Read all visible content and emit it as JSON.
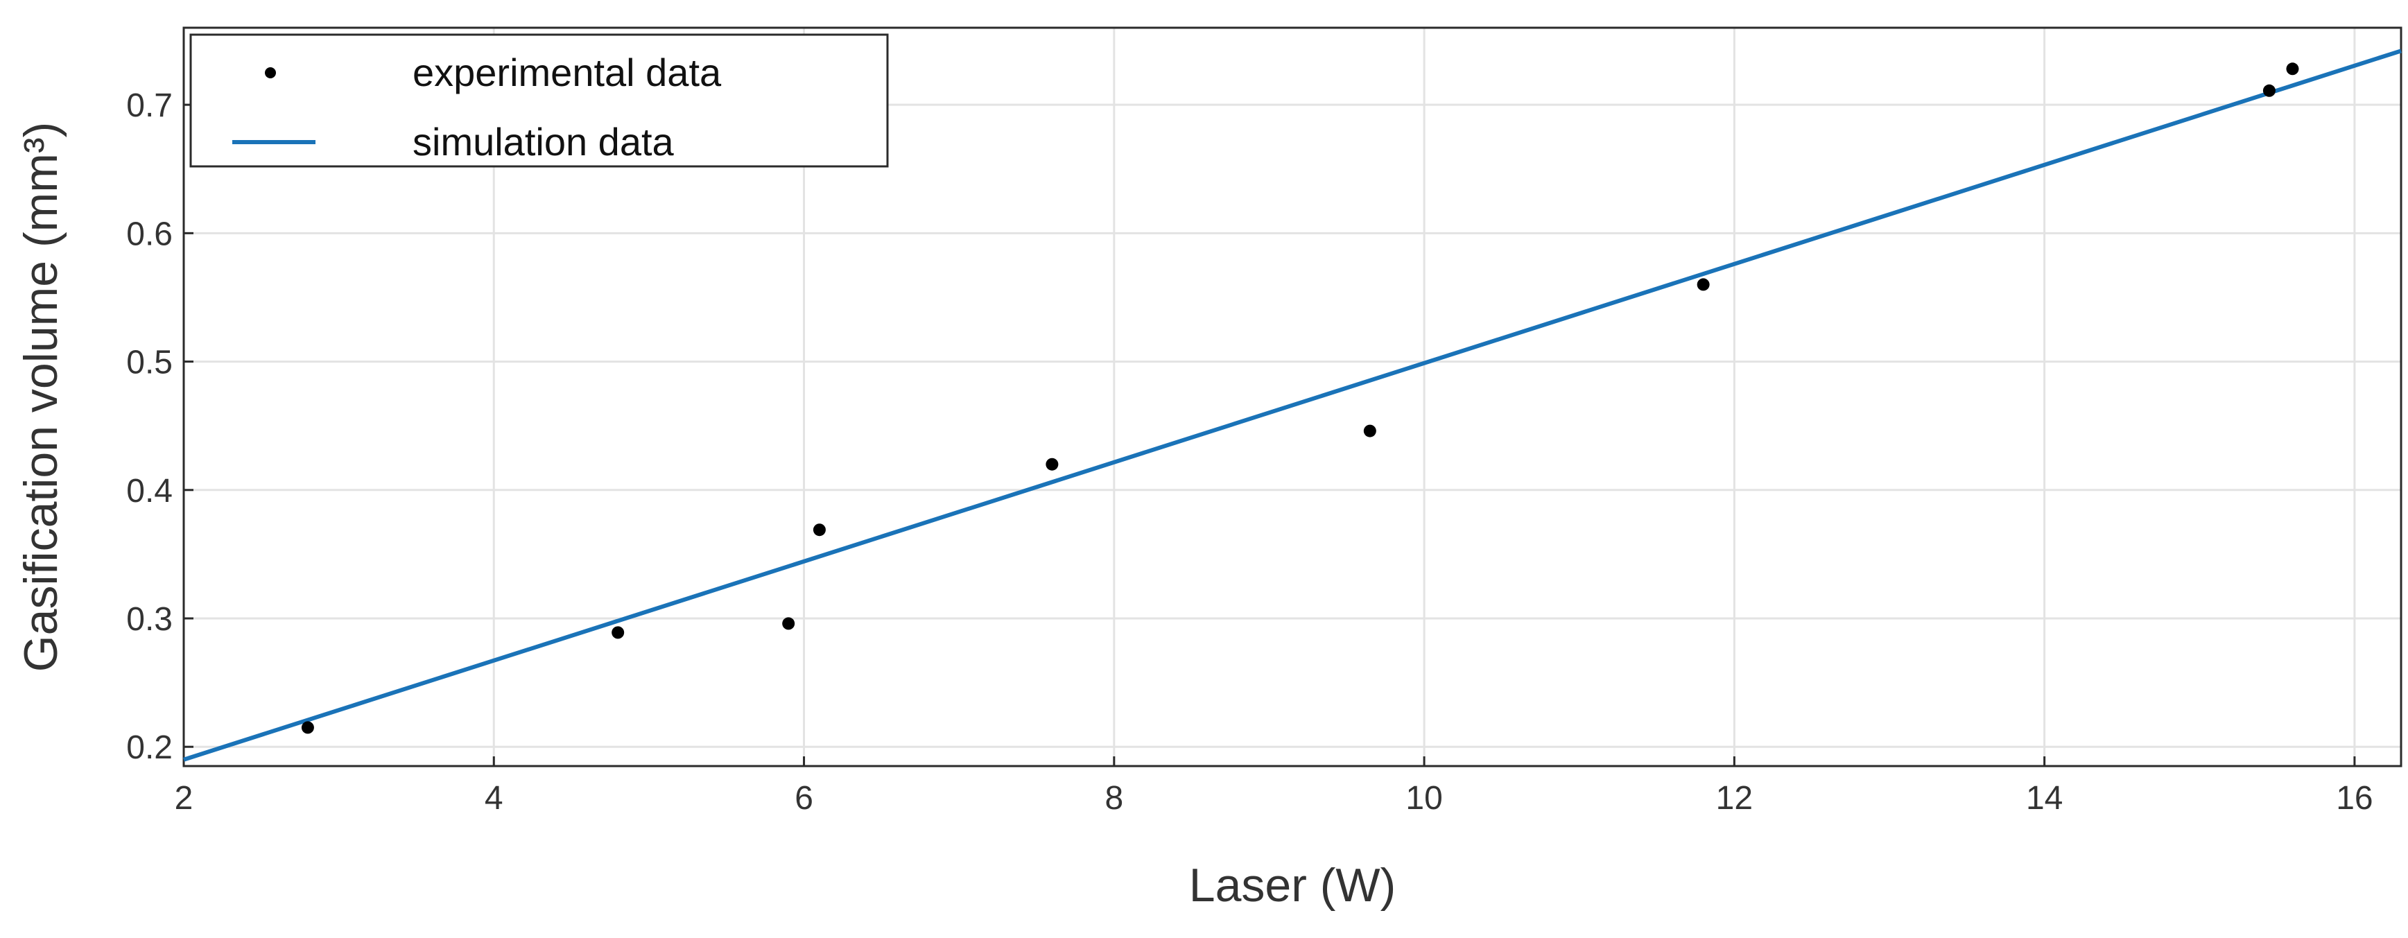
{
  "chart_data": {
    "type": "scatter",
    "title": "",
    "xlabel": "Laser (W)",
    "ylabel": "Gasification volume (mm³)",
    "xlim": [
      2,
      16.3
    ],
    "ylim": [
      0.185,
      0.76
    ],
    "xticks": [
      2,
      4,
      6,
      8,
      10,
      12,
      14,
      16
    ],
    "yticks": [
      0.2,
      0.3,
      0.4,
      0.5,
      0.6,
      0.7
    ],
    "xtick_labels": [
      "2",
      "4",
      "6",
      "8",
      "10",
      "12",
      "14",
      "16"
    ],
    "ytick_labels": [
      "0.2",
      "0.3",
      "0.4",
      "0.5",
      "0.6",
      "0.7"
    ],
    "grid": true,
    "legend_position": "top-left",
    "series": [
      {
        "name": "experimental data",
        "kind": "scatter",
        "color": "#000000",
        "x": [
          2.8,
          4.8,
          5.9,
          6.1,
          7.6,
          9.65,
          11.8,
          15.45,
          15.6
        ],
        "y": [
          0.215,
          0.289,
          0.296,
          0.369,
          0.42,
          0.446,
          0.56,
          0.711,
          0.728
        ]
      },
      {
        "name": "simulation data",
        "kind": "line",
        "color": "#1a73b8",
        "x": [
          2,
          16.3
        ],
        "y": [
          0.19,
          0.742
        ]
      }
    ]
  }
}
